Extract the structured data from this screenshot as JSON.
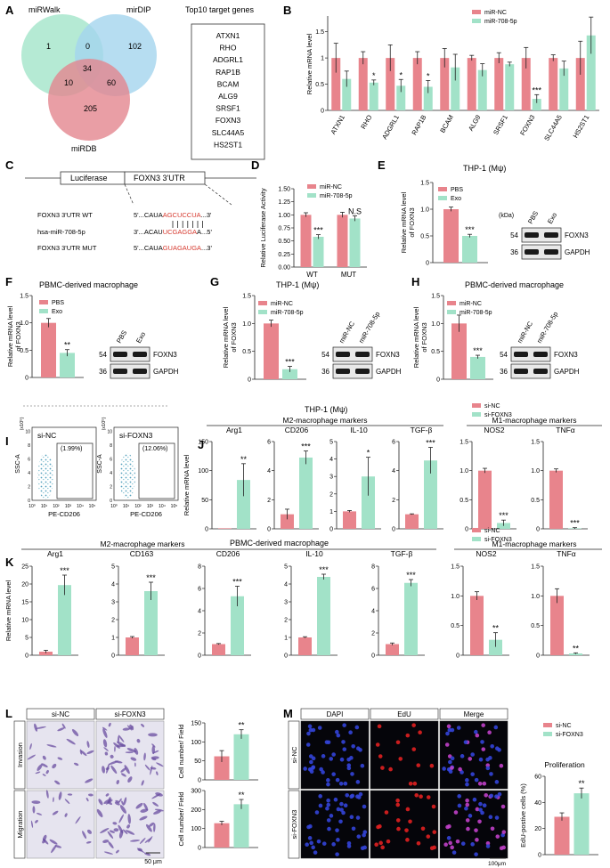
{
  "colors": {
    "nc": "#e8848c",
    "tr": "#a2e2c8",
    "venn_a": "#a8e6cc",
    "venn_b": "#a4d4ee",
    "venn_c": "#e4868e"
  },
  "panel_labels": {
    "A": "A",
    "B": "B",
    "C": "C",
    "D": "D",
    "E": "E",
    "F": "F",
    "G": "G",
    "H": "H",
    "I": "I",
    "J": "J",
    "K": "K",
    "L": "L",
    "M": "M"
  },
  "common": {
    "nc": "miR-NC",
    "mir": "miR-708-5p",
    "pbs": "PBS",
    "exo": "Exo",
    "sinc": "si-NC",
    "sifoxn3": "si-FOXN3",
    "foxn3": "FOXN3",
    "gapdh": "GAPDH",
    "kda": "(kDa)",
    "mw54": "54",
    "mw36": "36",
    "ylab_foxn3_1": "Relative mRNA level",
    "ylab_foxn3_2": "of FOXN3",
    "ylab_mrna": "Relative mRNA level"
  },
  "panelA": {
    "sets": [
      "miRWalk",
      "mirDIP",
      "miRDB"
    ],
    "counts": [
      "1",
      "0",
      "102",
      "34",
      "10",
      "60",
      "205"
    ],
    "top_title": "Top10 target genes",
    "genes": [
      "ATXN1",
      "RHO",
      "ADGRL1",
      "RAP1B",
      "BCAM",
      "ALG9",
      "SRSF1",
      "FOXN3",
      "SLC44A5",
      "HS2ST1"
    ]
  },
  "panelC": {
    "luc": "Luciferase",
    "utr": "FOXN3 3'UTR",
    "rows": [
      {
        "label": "FOXN3 3'UTR WT",
        "pre": "5'...CAUA",
        "site": "AGCUCCUA",
        "post": "...3'"
      },
      {
        "label": "hsa-miR-708-5p",
        "pre": "3'...ACAU",
        "site": "UCGAGGA",
        "post": "A...5'"
      },
      {
        "label": "FOXN3 3'UTR MUT",
        "pre": "5'...CAUA",
        "site": "GUAGAUGA",
        "post": "...3'"
      }
    ]
  },
  "titles": {
    "E": "THP-1 (Mψ)",
    "F": "PBMC-derived macrophage",
    "G": "THP-1 (Mψ)",
    "H": "PBMC-derived macrophage",
    "J": "THP-1 (Mψ)",
    "J_m2": "M2-macrophage markers",
    "J_m1": "M1-macrophage markers",
    "K": "PBMC-derived macrophage",
    "K_m2": "M2-macrophage markers",
    "K_m1": "M1-macrophage markers",
    "M_prolif": "Proliferation"
  },
  "panelI": {
    "ylabel": "SSC-A",
    "xlabel": "PE-CD206",
    "scale": "(x10⁵)",
    "gates": [
      "(1.99%)",
      "(12.06%)"
    ]
  },
  "panelL": {
    "rows": [
      "Invasion",
      "Migration"
    ],
    "scale": "50 μm"
  },
  "panelM": {
    "cols": [
      "DAPI",
      "EdU",
      "Merge"
    ],
    "scale": "100μm"
  },
  "chart_data": [
    {
      "id": "B",
      "type": "bar",
      "title": "",
      "ylabel": "Relative mRNA level",
      "ylim": [
        0,
        1.8
      ],
      "yticks": [
        0,
        0.5,
        1,
        1.5
      ],
      "categories": [
        "ATXN1",
        "RHO",
        "ADGRL1",
        "RAP1B",
        "BCAM",
        "ALG9",
        "SRSF1",
        "FOXN3",
        "SLC44A5",
        "HS2ST1"
      ],
      "series": [
        {
          "name": "miR-NC",
          "values": [
            1.0,
            1.0,
            1.0,
            1.0,
            1.0,
            1.0,
            1.0,
            1.0,
            1.0,
            1.0
          ],
          "err": [
            0.28,
            0.12,
            0.25,
            0.12,
            0.18,
            0.05,
            0.1,
            0.2,
            0.06,
            0.32
          ]
        },
        {
          "name": "miR-708-5p",
          "values": [
            0.6,
            0.53,
            0.47,
            0.45,
            0.82,
            0.77,
            0.88,
            0.22,
            0.8,
            1.43
          ],
          "err": [
            0.15,
            0.05,
            0.12,
            0.12,
            0.25,
            0.12,
            0.04,
            0.08,
            0.14,
            0.35
          ]
        }
      ],
      "sig": [
        "",
        "*",
        "*",
        "*",
        "",
        "",
        "",
        "***",
        "",
        ""
      ]
    },
    {
      "id": "D",
      "type": "bar",
      "ylabel": "Relative Luciferase Activity",
      "ylim": [
        0,
        1.5
      ],
      "yticks": [
        0,
        0.25,
        0.5,
        0.75,
        1.0,
        1.25,
        1.5
      ],
      "categories": [
        "WT",
        "MUT"
      ],
      "series": [
        {
          "name": "miR-NC",
          "values": [
            1.0,
            1.0
          ],
          "err": [
            0.04,
            0.05
          ]
        },
        {
          "name": "miR-708-5p",
          "values": [
            0.58,
            0.93
          ],
          "err": [
            0.04,
            0.05
          ]
        }
      ],
      "sig": [
        "***",
        "N.S"
      ]
    },
    {
      "id": "E",
      "type": "bar",
      "ylim": [
        0,
        1.5
      ],
      "yticks": [
        0,
        0.5,
        1.0,
        1.5
      ],
      "categories": [
        "PBS",
        "Exo"
      ],
      "values": [
        1.0,
        0.5
      ],
      "err": [
        0.04,
        0.03
      ],
      "sig": "***"
    },
    {
      "id": "F",
      "type": "bar",
      "ylim": [
        0,
        1.5
      ],
      "yticks": [
        0,
        0.5,
        1.0,
        1.5
      ],
      "categories": [
        "PBS",
        "Exo"
      ],
      "values": [
        1.0,
        0.45
      ],
      "err": [
        0.08,
        0.06
      ],
      "sig": "**"
    },
    {
      "id": "G",
      "type": "bar",
      "ylim": [
        0,
        1.5
      ],
      "yticks": [
        0,
        0.5,
        1.0,
        1.5
      ],
      "categories": [
        "miR-NC",
        "miR-708-5p"
      ],
      "values": [
        1.0,
        0.18
      ],
      "err": [
        0.06,
        0.05
      ],
      "sig": "***"
    },
    {
      "id": "H",
      "type": "bar",
      "ylim": [
        0,
        1.5
      ],
      "yticks": [
        0,
        0.5,
        1.0,
        1.5
      ],
      "categories": [
        "miR-NC",
        "miR-708-5p"
      ],
      "values": [
        1.0,
        0.4
      ],
      "err": [
        0.15,
        0.03
      ],
      "sig": "***"
    },
    {
      "id": "J",
      "type": "bar",
      "ylabel": "Relative mRNA level",
      "series_names": [
        "si-NC",
        "si-FOXN3"
      ],
      "groups": [
        {
          "title": "Arg1",
          "ylim": [
            0,
            150
          ],
          "yticks": [
            0,
            50,
            100,
            150
          ],
          "values": [
            1,
            84
          ],
          "err": [
            0,
            28
          ],
          "sig": "**"
        },
        {
          "title": "CD206",
          "ylim": [
            0,
            6
          ],
          "yticks": [
            0,
            2,
            4,
            6
          ],
          "values": [
            1,
            4.9
          ],
          "err": [
            0.35,
            0.45
          ],
          "sig": "***"
        },
        {
          "title": "IL-10",
          "ylim": [
            0,
            5
          ],
          "yticks": [
            0,
            1,
            2,
            3,
            4,
            5
          ],
          "values": [
            1,
            3
          ],
          "err": [
            0.05,
            1.1
          ],
          "sig": "*"
        },
        {
          "title": "TGF-β",
          "ylim": [
            0,
            6
          ],
          "yticks": [
            0,
            2,
            4,
            6
          ],
          "values": [
            1,
            4.7
          ],
          "err": [
            0.03,
            0.9
          ],
          "sig": "***"
        },
        {
          "title": "NOS2",
          "ylim": [
            0,
            1.5
          ],
          "yticks": [
            0,
            0.5,
            1.0,
            1.5
          ],
          "values": [
            1,
            0.1
          ],
          "err": [
            0.04,
            0.05
          ],
          "sig": "***"
        },
        {
          "title": "TNFα",
          "ylim": [
            0,
            1.5
          ],
          "yticks": [
            0,
            0.5,
            1.0,
            1.5
          ],
          "values": [
            1,
            0.01
          ],
          "err": [
            0.03,
            0.01
          ],
          "sig": "***"
        }
      ]
    },
    {
      "id": "K",
      "type": "bar",
      "ylabel": "Relative mRNA level",
      "series_names": [
        "si-NC",
        "si-FOXN3"
      ],
      "groups": [
        {
          "title": "Arg1",
          "ylim": [
            0,
            25
          ],
          "yticks": [
            0,
            5,
            10,
            15,
            20,
            25
          ],
          "values": [
            1,
            19.7
          ],
          "err": [
            0.4,
            2.8
          ],
          "sig": "***"
        },
        {
          "title": "CD163",
          "ylim": [
            0,
            5
          ],
          "yticks": [
            0,
            1,
            2,
            3,
            4,
            5
          ],
          "values": [
            1,
            3.6
          ],
          "err": [
            0.05,
            0.5
          ],
          "sig": "***"
        },
        {
          "title": "CD206",
          "ylim": [
            0,
            8
          ],
          "yticks": [
            0,
            2,
            4,
            6,
            8
          ],
          "values": [
            1,
            5.3
          ],
          "err": [
            0.05,
            0.9
          ],
          "sig": "***"
        },
        {
          "title": "IL-10",
          "ylim": [
            0,
            5
          ],
          "yticks": [
            0,
            1,
            2,
            3,
            4,
            5
          ],
          "values": [
            1,
            4.4
          ],
          "err": [
            0.04,
            0.15
          ],
          "sig": "***"
        },
        {
          "title": "TGF-β",
          "ylim": [
            0,
            8
          ],
          "yticks": [
            0,
            2,
            4,
            6,
            8
          ],
          "values": [
            1,
            6.5
          ],
          "err": [
            0.1,
            0.3
          ],
          "sig": "***"
        },
        {
          "title": "NOS2",
          "ylim": [
            0,
            1.5
          ],
          "yticks": [
            0,
            0.5,
            1.0,
            1.5
          ],
          "values": [
            1,
            0.26
          ],
          "err": [
            0.07,
            0.12
          ],
          "sig": "**"
        },
        {
          "title": "TNFα",
          "ylim": [
            0,
            1.5
          ],
          "yticks": [
            0,
            0.5,
            1.0,
            1.5
          ],
          "values": [
            1,
            0.03
          ],
          "err": [
            0.12,
            0.01
          ],
          "sig": "**"
        }
      ]
    },
    {
      "id": "L1",
      "type": "bar",
      "ylabel": "Cell number/ Field",
      "ylim": [
        0,
        150
      ],
      "yticks": [
        0,
        50,
        100,
        150
      ],
      "categories": [
        "si-NC",
        "si-FOXN3"
      ],
      "values": [
        62,
        120
      ],
      "err": [
        15,
        12
      ],
      "sig": "**"
    },
    {
      "id": "L2",
      "type": "bar",
      "ylabel": "Cell number/ Field",
      "ylim": [
        0,
        300
      ],
      "yticks": [
        0,
        100,
        200,
        300
      ],
      "categories": [
        "si-NC",
        "si-FOXN3"
      ],
      "values": [
        128,
        228
      ],
      "err": [
        10,
        25
      ],
      "sig": "**"
    },
    {
      "id": "M",
      "type": "bar",
      "ylabel": "EdU-postive cells (%)",
      "ylim": [
        0,
        60
      ],
      "yticks": [
        0,
        20,
        40,
        60
      ],
      "categories": [
        "si-NC",
        "si-FOXN3"
      ],
      "values": [
        29,
        47
      ],
      "err": [
        3,
        4
      ],
      "sig": "**"
    }
  ]
}
